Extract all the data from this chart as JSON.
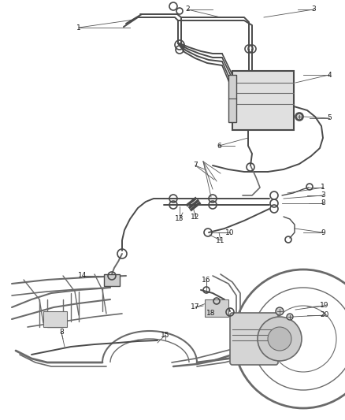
{
  "bg_color": "#ffffff",
  "line_color": "#4a4a4a",
  "thin_color": "#6a6a6a",
  "leader_color": "#555555",
  "label_color": "#1a1a1a",
  "fig_width": 4.38,
  "fig_height": 5.33,
  "dpi": 100,
  "label_fs": 6.5,
  "tube_lw": 1.8,
  "thin_lw": 1.0,
  "leader_lw": 0.6
}
